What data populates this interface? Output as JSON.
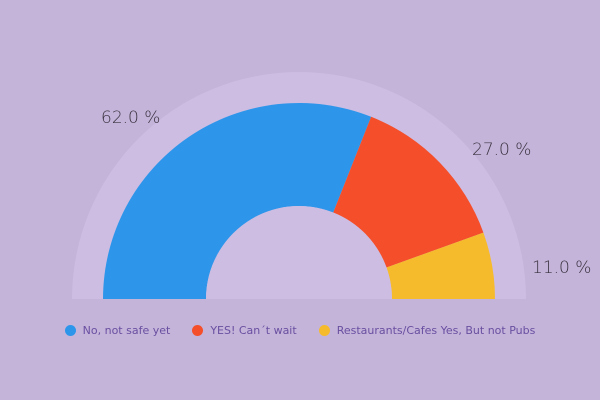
{
  "chart_data": {
    "type": "pie",
    "subtype": "semi-donut",
    "categories": [
      "No, not safe yet",
      "YES! Can´t wait",
      "Restaurants/Cafes Yes, But not Pubs"
    ],
    "values": [
      62.0,
      27.0,
      11.0
    ],
    "labels": [
      "62.0 %",
      "27.0 %",
      "11.0 %"
    ],
    "colors": [
      "#2e96ea",
      "#f44f2a",
      "#f6bb2c"
    ],
    "legend_position": "bottom",
    "title": ""
  },
  "colors": {
    "background": "#c4b4da",
    "halo": "#cdbde3",
    "inner": "#cdbde3"
  },
  "legend": [
    {
      "label": "No, not safe yet",
      "color": "#2e96ea"
    },
    {
      "label": "YES! Can´t wait",
      "color": "#f44f2a"
    },
    {
      "label": "Restaurants/Cafes Yes, But not Pubs",
      "color": "#f6bb2c"
    }
  ]
}
